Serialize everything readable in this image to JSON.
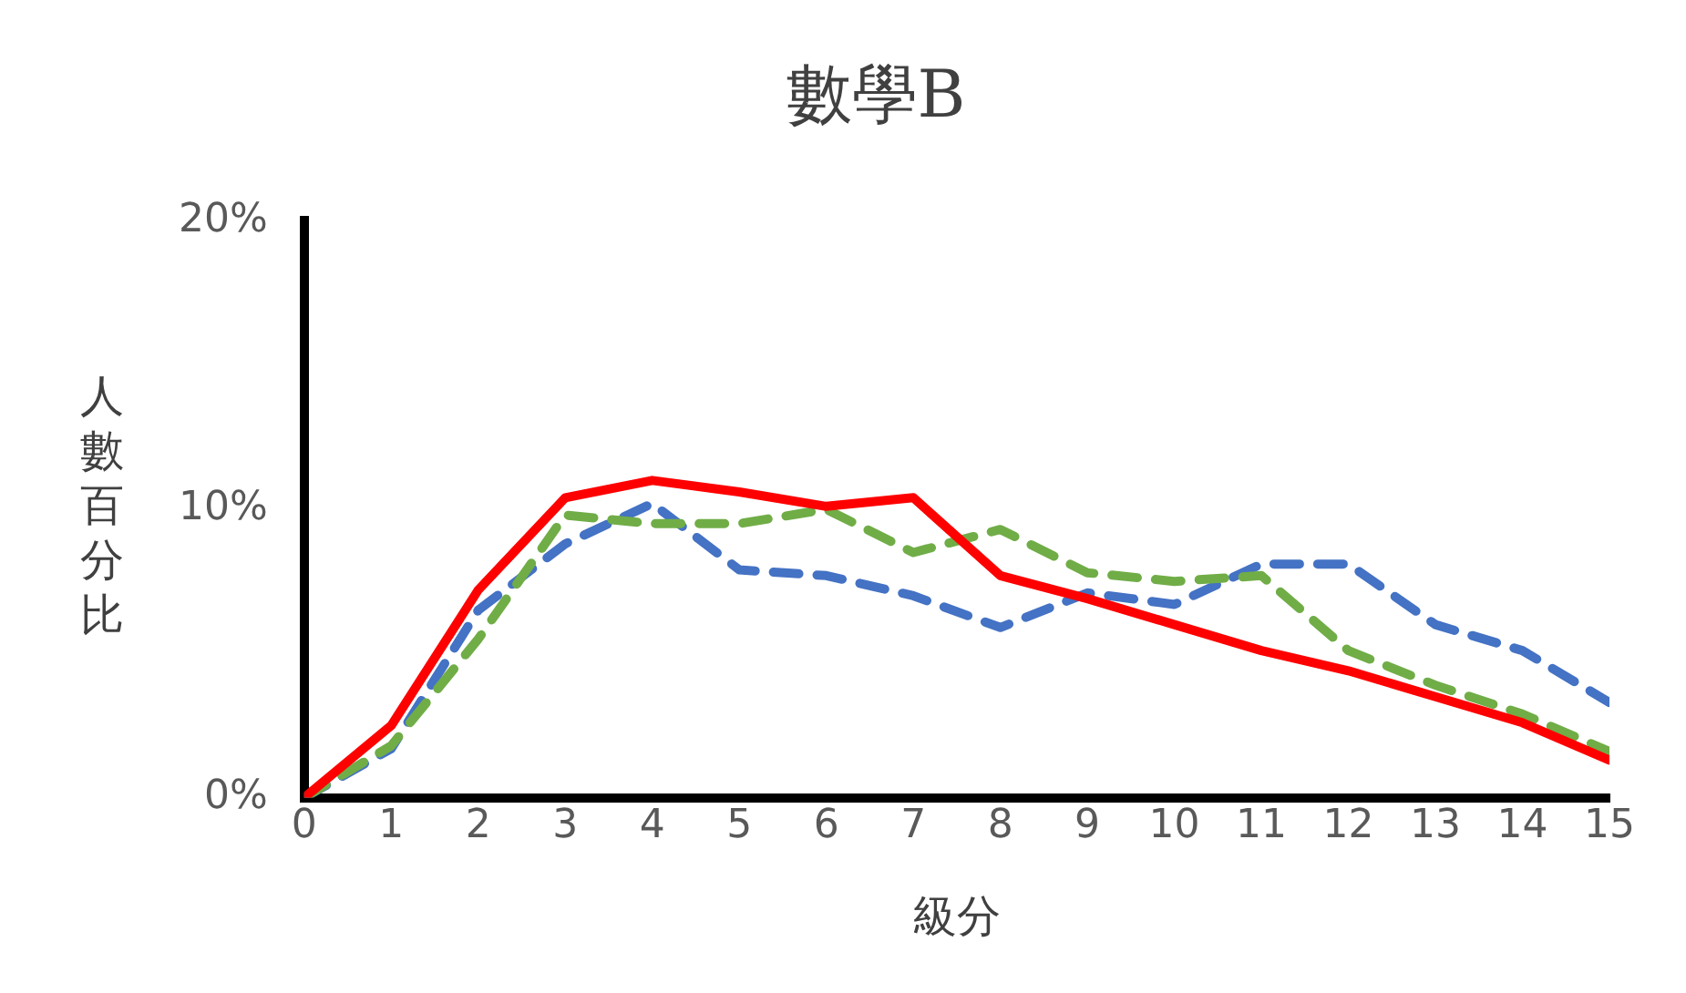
{
  "chart_data": {
    "type": "line",
    "title": "數學B",
    "xlabel": "級分",
    "ylabel": "人數百分比",
    "x": [
      0,
      1,
      2,
      3,
      4,
      5,
      6,
      7,
      8,
      9,
      10,
      11,
      12,
      13,
      14,
      15
    ],
    "xlim": [
      0,
      15
    ],
    "xticks": [
      0,
      1,
      2,
      3,
      4,
      5,
      6,
      7,
      8,
      9,
      10,
      11,
      12,
      13,
      14,
      15
    ],
    "ylim": [
      0,
      20
    ],
    "yticks": [
      {
        "value": 0,
        "label": "0%"
      },
      {
        "value": 10,
        "label": "10%"
      },
      {
        "value": 20,
        "label": "20%"
      }
    ],
    "grid": false,
    "legend": false,
    "marker": "none",
    "series": [
      {
        "color": "#ff0000",
        "line_style": "solid",
        "values": [
          0,
          2.5,
          7.2,
          10.4,
          11.0,
          10.6,
          10.1,
          10.4,
          7.7,
          6.9,
          6.0,
          5.1,
          4.4,
          3.5,
          2.6,
          1.3
        ]
      },
      {
        "color": "#70ad47",
        "line_style": "dashed",
        "values": [
          0,
          1.8,
          5.5,
          9.8,
          9.5,
          9.5,
          10.0,
          8.5,
          9.3,
          7.8,
          7.5,
          7.7,
          5.1,
          3.9,
          2.9,
          1.6
        ]
      },
      {
        "color": "#4472c4",
        "line_style": "dashed",
        "values": [
          0,
          1.7,
          6.5,
          8.8,
          10.2,
          7.9,
          7.7,
          7.0,
          5.9,
          7.1,
          6.7,
          8.1,
          8.1,
          6.0,
          5.1,
          3.3
        ]
      }
    ]
  }
}
